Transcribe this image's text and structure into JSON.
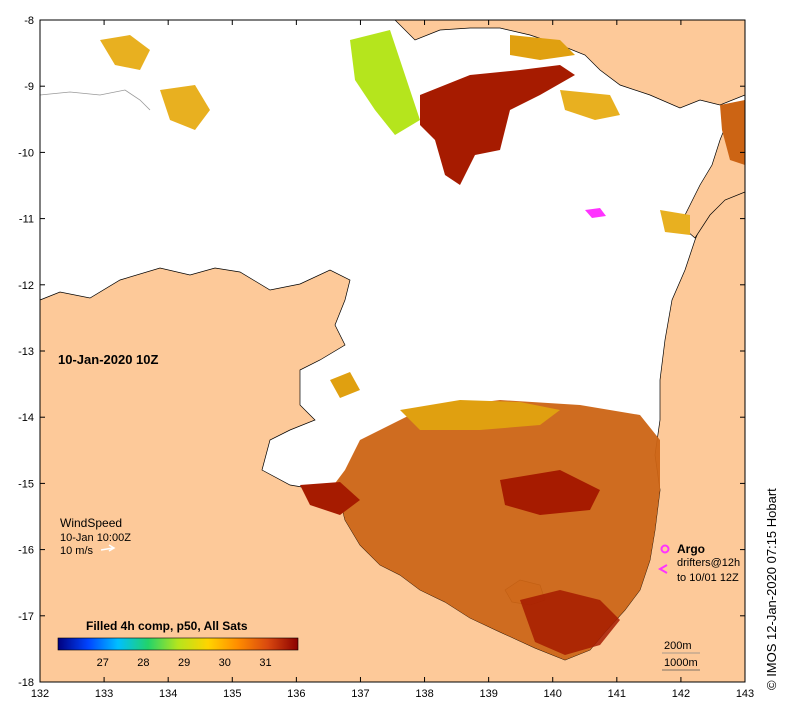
{
  "map": {
    "date_label": "10-Jan-2020 10Z",
    "lon_ticks": [
      "132",
      "133",
      "134",
      "135",
      "136",
      "137",
      "138",
      "139",
      "140",
      "141",
      "142",
      "143"
    ],
    "lat_ticks": [
      "-8",
      "-9",
      "-10",
      "-11",
      "-12",
      "-13",
      "-14",
      "-15",
      "-16",
      "-17",
      "-18"
    ],
    "wind": {
      "title": "WindSpeed",
      "time": "10-Jan 10:00Z",
      "scale": "10 m/s"
    },
    "legend": {
      "title": "Filled 4h comp, p50, All Sats",
      "ticks": [
        "27",
        "28",
        "29",
        "30",
        "31"
      ],
      "colors": [
        "#00007f",
        "#0044ff",
        "#00bfff",
        "#22d36a",
        "#b5e51d",
        "#ffd400",
        "#ff8c00",
        "#d9480f",
        "#8b0000"
      ]
    },
    "argo": {
      "label": "Argo",
      "drifters": "drifters@12h",
      "drifters_to": "to 10/01 12Z",
      "color": "#ff33ff"
    },
    "contours": {
      "c1": "200m",
      "c2": "1000m"
    },
    "credit": "© IMOS 12-Jan-2020 07:15 Hobart",
    "colors": {
      "land": "#fdc999",
      "ocean": "#ffffff",
      "sst_hot": "#a61b00",
      "sst_warm": "#cc6414",
      "sst_mid": "#e0a010"
    }
  }
}
